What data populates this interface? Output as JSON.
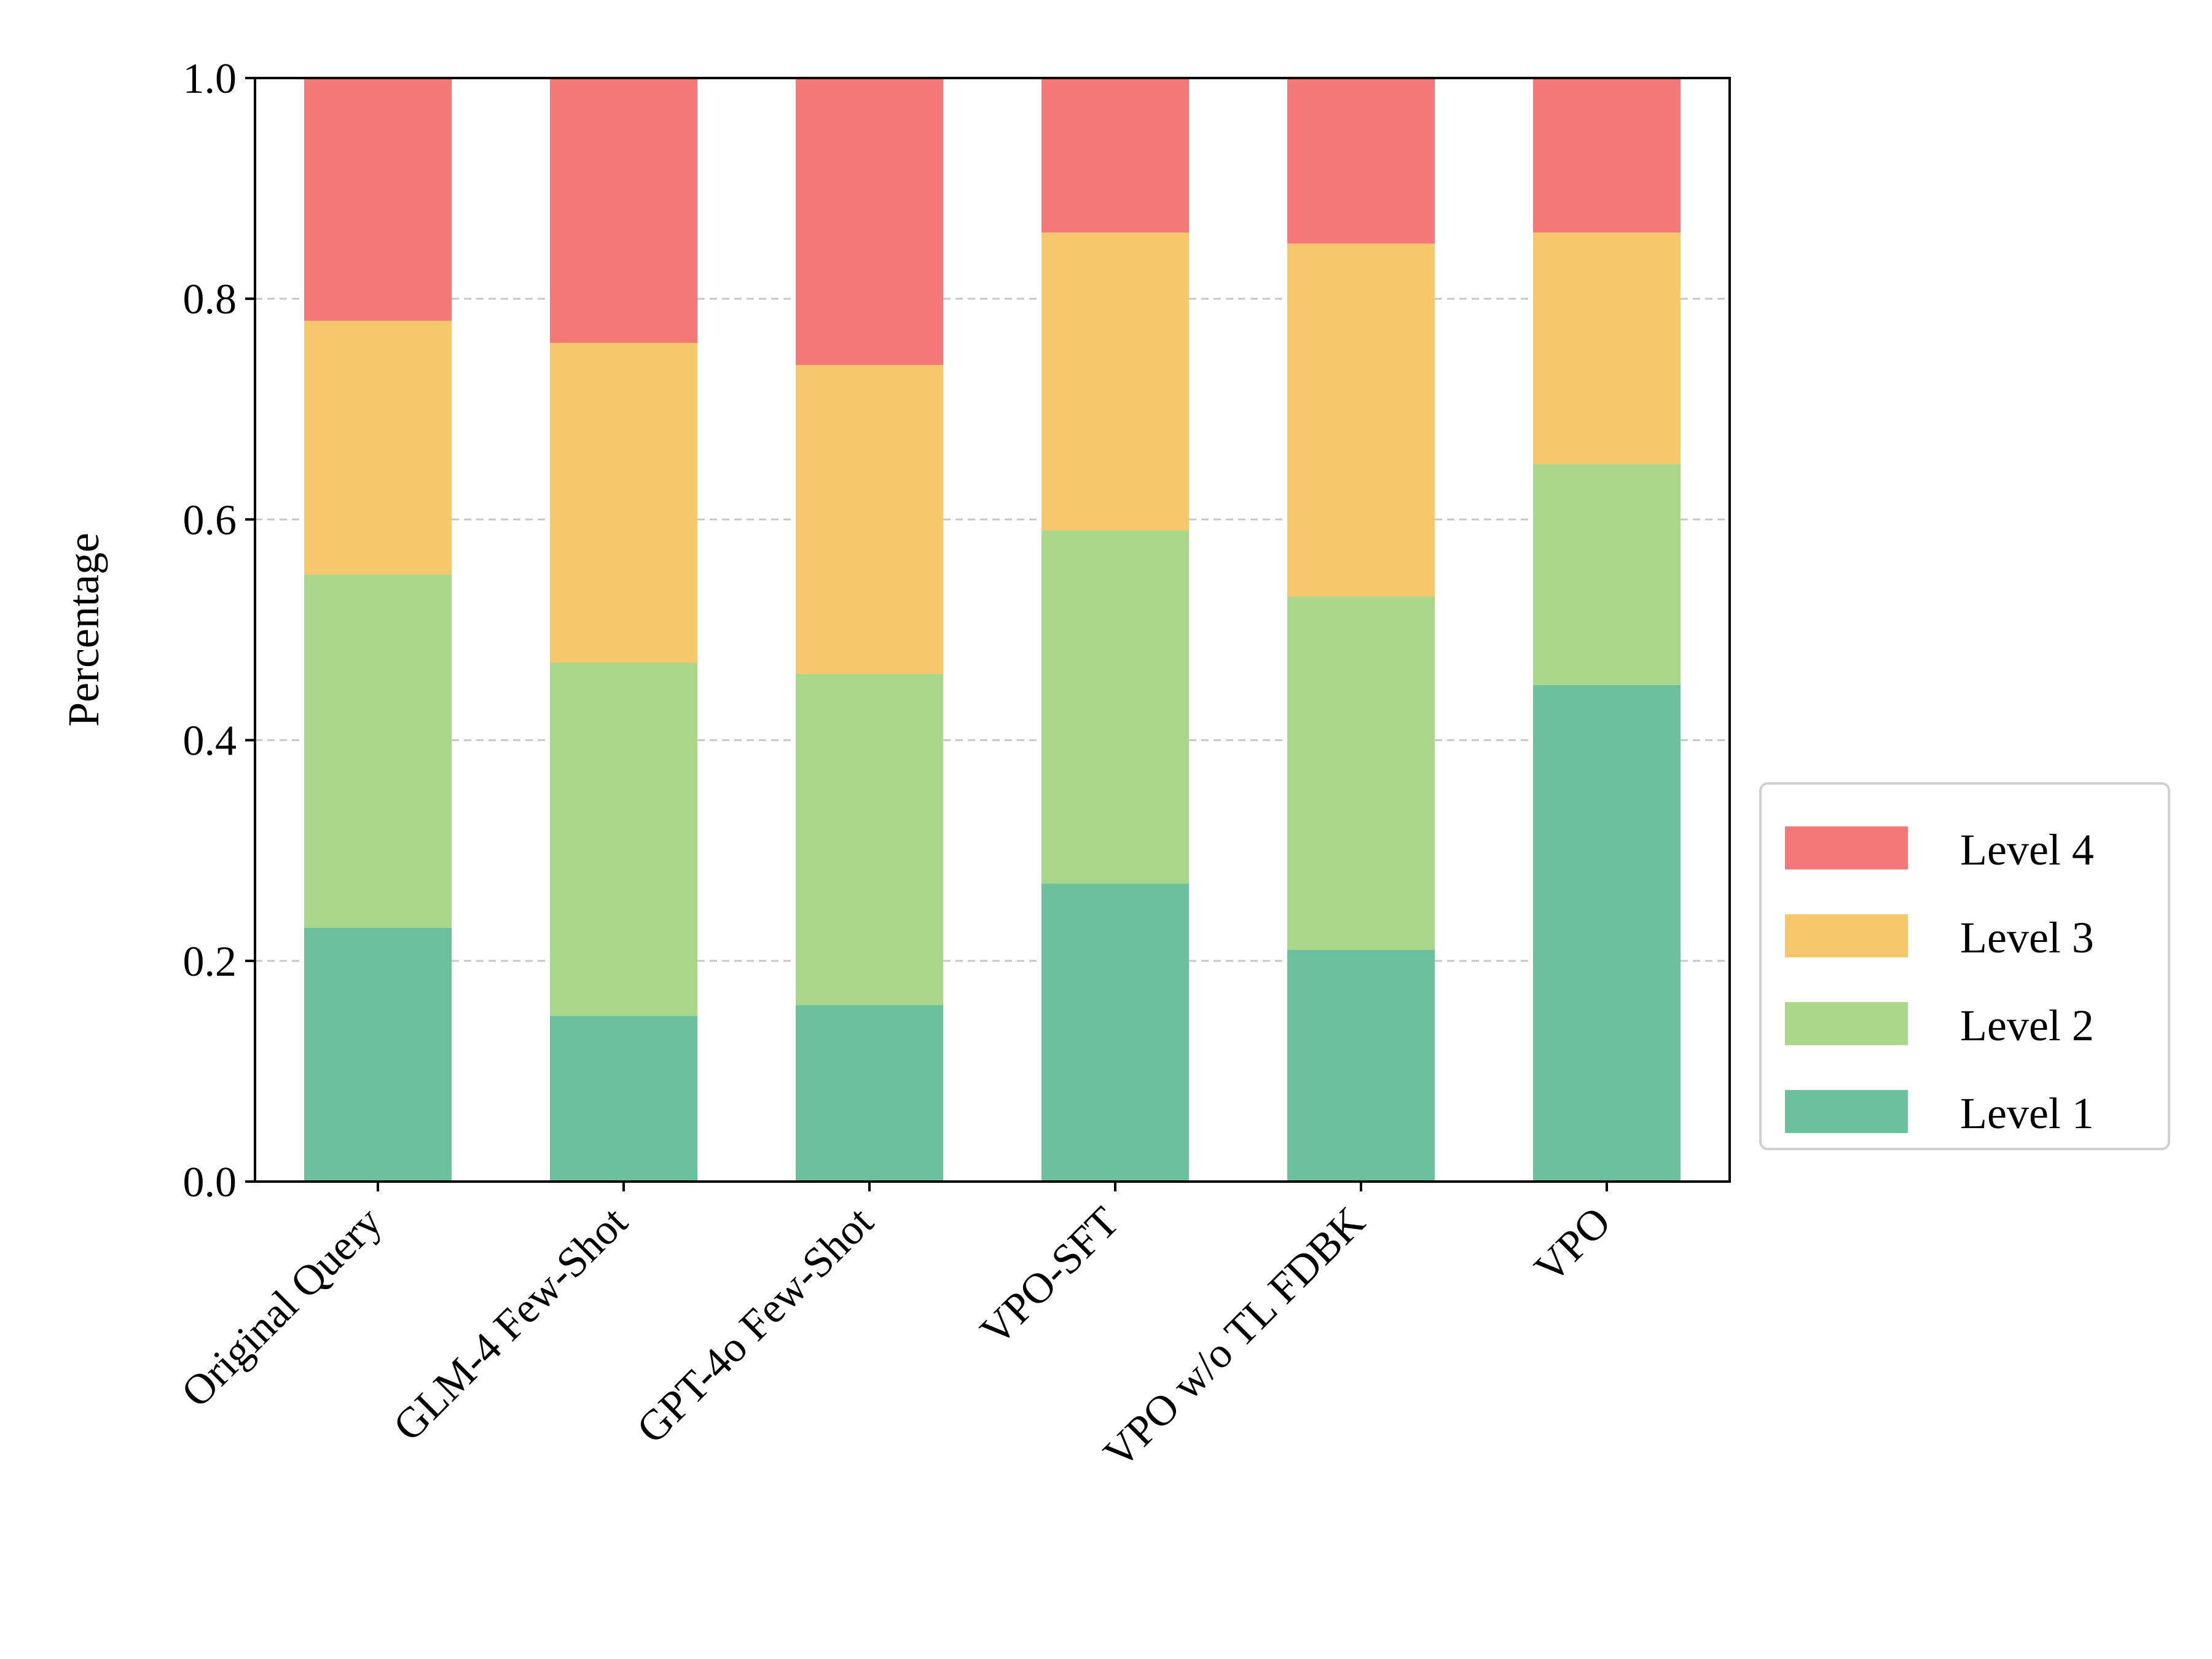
{
  "chart_data": {
    "type": "bar",
    "stacked": true,
    "ylabel": "Percentage",
    "ylim": [
      0,
      1
    ],
    "yticks": [
      "0.0",
      "0.2",
      "0.4",
      "0.6",
      "0.8",
      "1.0"
    ],
    "grid": "horizontal-dashed",
    "legend_position": "outside-right",
    "categories": [
      "Original Query",
      "GLM-4 Few-Shot",
      "GPT-4o Few-Shot",
      "VPO-SFT",
      "VPO w/o TL FDBK",
      "VPO"
    ],
    "series": [
      {
        "name": "Level 1",
        "color": "#6cc09c",
        "values": [
          0.23,
          0.15,
          0.16,
          0.27,
          0.21,
          0.45
        ]
      },
      {
        "name": "Level 2",
        "color": "#a8d78a",
        "values": [
          0.32,
          0.32,
          0.3,
          0.32,
          0.32,
          0.2
        ]
      },
      {
        "name": "Level 3",
        "color": "#f7c76d",
        "values": [
          0.23,
          0.29,
          0.28,
          0.27,
          0.32,
          0.21
        ]
      },
      {
        "name": "Level 4",
        "color": "#f47878",
        "values": [
          0.22,
          0.24,
          0.26,
          0.14,
          0.15,
          0.14
        ]
      }
    ]
  }
}
